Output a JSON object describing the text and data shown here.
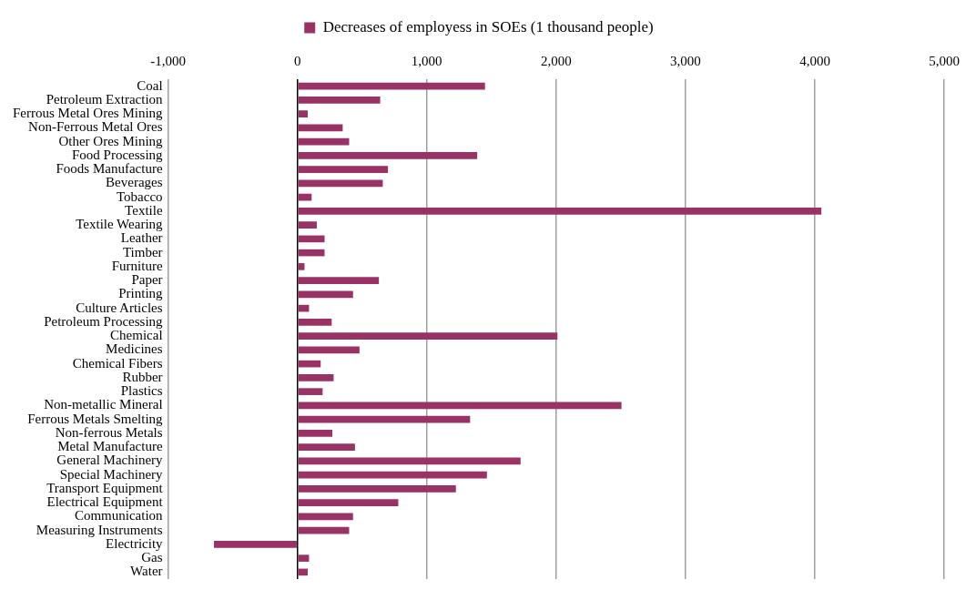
{
  "chart_data": {
    "type": "bar",
    "orientation": "horizontal",
    "categories": [
      "Coal",
      "Petroleum Extraction",
      "Ferrous Metal Ores Mining",
      "Non-Ferrous Metal Ores",
      "Other Ores Mining",
      "Food Processing",
      "Foods Manufacture",
      "Beverages",
      "Tobacco",
      "Textile",
      "Textile Wearing",
      "Leather",
      "Timber",
      "Furniture",
      "Paper",
      "Printing",
      "Culture Articles",
      "Petroleum Processing",
      "Chemical",
      "Medicines",
      "Chemical Fibers",
      "Rubber",
      "Plastics",
      "Non-metallic Mineral",
      "Ferrous Metals Smelting",
      "Non-ferrous Metals",
      "Metal Manufacture",
      "General Machinery",
      "Special Machinery",
      "Transport Equipment",
      "Electrical Equipment",
      "Communication",
      "Measuring Instruments",
      "Electricity",
      "Gas",
      "Water"
    ],
    "series": [
      {
        "name": "Decreases of employess in SOEs (1 thousand people)",
        "color": "#993366",
        "values": [
          1450,
          640,
          80,
          350,
          400,
          1390,
          700,
          660,
          110,
          4050,
          150,
          210,
          210,
          55,
          630,
          430,
          90,
          265,
          2010,
          480,
          180,
          280,
          195,
          2505,
          1335,
          270,
          445,
          1725,
          1465,
          1225,
          780,
          430,
          400,
          -645,
          90,
          80
        ]
      }
    ],
    "xlim": [
      -1000,
      5000
    ],
    "xticks": [
      {
        "value": -1000,
        "label": "-1,000"
      },
      0,
      {
        "value": 1000,
        "label": "1,000"
      },
      {
        "value": 2000,
        "label": "2,000"
      },
      {
        "value": 3000,
        "label": "3,000"
      },
      {
        "value": 4000,
        "label": "4,000"
      },
      {
        "value": 5000,
        "label": "5,000"
      }
    ],
    "grid": "x",
    "legend": "top"
  }
}
